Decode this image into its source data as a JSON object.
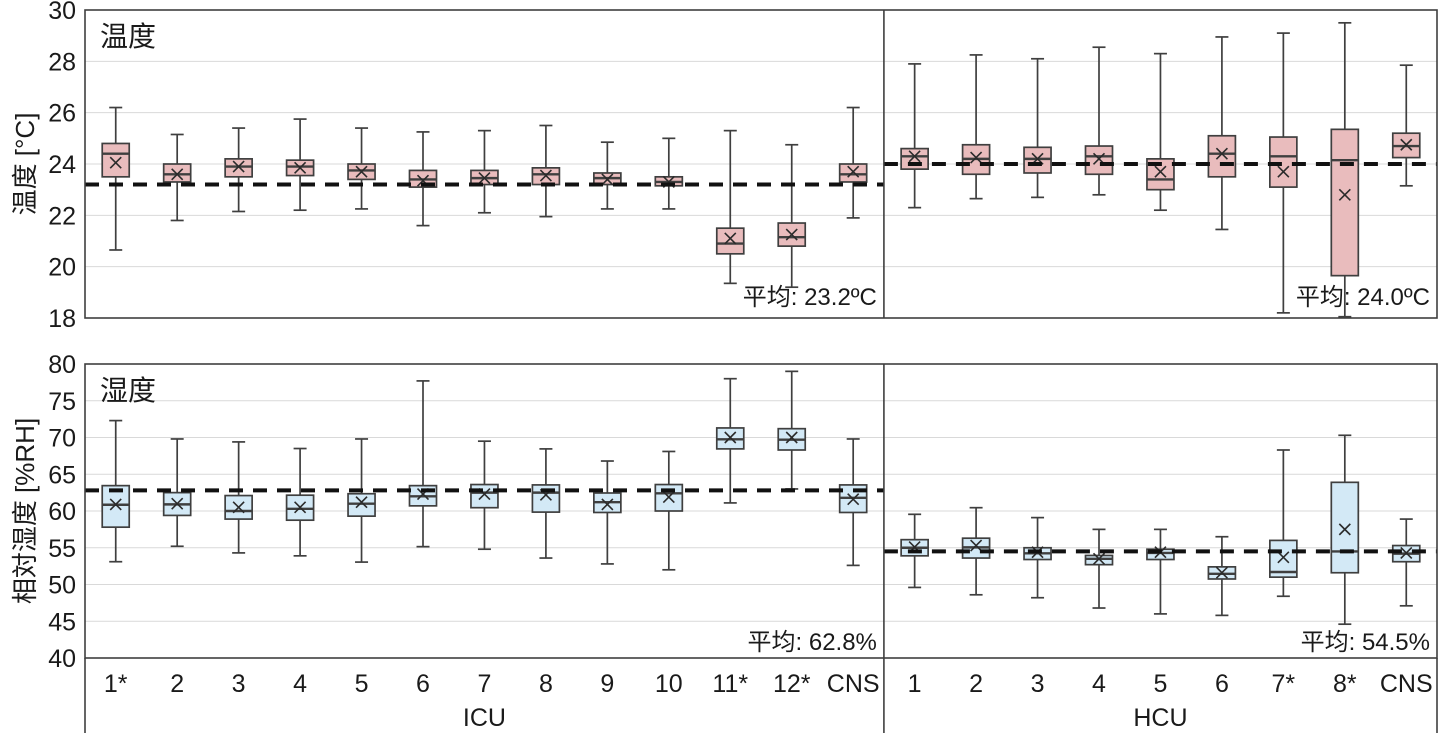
{
  "figure": {
    "background": "#ffffff",
    "grid_color": "#d9d9d9",
    "border_color": "#3f3f3f",
    "dashed_line_color": "#111111",
    "text_color": "#1a1a1a"
  },
  "chart_data": [
    {
      "type": "boxplot",
      "title": "温度",
      "ylabel": "温度 [°C]",
      "ylim": [
        18,
        30
      ],
      "ytick_step": 2,
      "yticks": [
        30,
        28,
        26,
        24,
        22,
        20,
        18
      ],
      "grid": true,
      "show_xlabels": false,
      "box_fill": "#e9bcbd",
      "box_stroke": "#3f3f3f",
      "groups": [
        {
          "name": "ICU",
          "mean_value": 23.2,
          "mean_label": "平均: 23.2ºC",
          "boxes": [
            {
              "label": "1*",
              "low": 20.65,
              "q1": 23.5,
              "med": 24.4,
              "q3": 24.8,
              "high": 26.2,
              "mean": 24.05
            },
            {
              "label": "2",
              "low": 21.8,
              "q1": 23.3,
              "med": 23.6,
              "q3": 24.0,
              "high": 25.15,
              "mean": 23.6
            },
            {
              "label": "3",
              "low": 22.15,
              "q1": 23.5,
              "med": 23.9,
              "q3": 24.2,
              "high": 25.4,
              "mean": 23.9
            },
            {
              "label": "4",
              "low": 22.2,
              "q1": 23.55,
              "med": 23.9,
              "q3": 24.15,
              "high": 25.75,
              "mean": 23.85
            },
            {
              "label": "5",
              "low": 22.25,
              "q1": 23.4,
              "med": 23.75,
              "q3": 24.0,
              "high": 25.4,
              "mean": 23.7
            },
            {
              "label": "6",
              "low": 21.6,
              "q1": 23.1,
              "med": 23.4,
              "q3": 23.75,
              "high": 25.25,
              "mean": 23.35
            },
            {
              "label": "7",
              "low": 22.1,
              "q1": 23.2,
              "med": 23.45,
              "q3": 23.75,
              "high": 25.3,
              "mean": 23.45
            },
            {
              "label": "8",
              "low": 21.95,
              "q1": 23.2,
              "med": 23.6,
              "q3": 23.85,
              "high": 25.5,
              "mean": 23.55
            },
            {
              "label": "9",
              "low": 22.25,
              "q1": 23.2,
              "med": 23.45,
              "q3": 23.65,
              "high": 24.85,
              "mean": 23.4
            },
            {
              "label": "10",
              "low": 22.25,
              "q1": 23.15,
              "med": 23.3,
              "q3": 23.5,
              "high": 25.0,
              "mean": 23.3
            },
            {
              "label": "11*",
              "low": 19.35,
              "q1": 20.5,
              "med": 20.9,
              "q3": 21.5,
              "high": 25.3,
              "mean": 21.1
            },
            {
              "label": "12*",
              "low": 19.2,
              "q1": 20.8,
              "med": 21.15,
              "q3": 21.7,
              "high": 24.75,
              "mean": 21.25
            },
            {
              "label": "CNS",
              "low": 21.9,
              "q1": 23.3,
              "med": 23.6,
              "q3": 24.0,
              "high": 26.2,
              "mean": 23.7
            }
          ]
        },
        {
          "name": "HCU",
          "mean_value": 24.0,
          "mean_label": "平均: 24.0ºC",
          "boxes": [
            {
              "label": "1",
              "low": 22.3,
              "q1": 23.8,
              "med": 24.3,
              "q3": 24.6,
              "high": 27.9,
              "mean": 24.3
            },
            {
              "label": "2",
              "low": 22.65,
              "q1": 23.6,
              "med": 24.2,
              "q3": 24.75,
              "high": 28.25,
              "mean": 24.25
            },
            {
              "label": "3",
              "low": 22.7,
              "q1": 23.65,
              "med": 24.2,
              "q3": 24.65,
              "high": 28.1,
              "mean": 24.2
            },
            {
              "label": "4",
              "low": 22.8,
              "q1": 23.6,
              "med": 24.3,
              "q3": 24.7,
              "high": 28.55,
              "mean": 24.2
            },
            {
              "label": "5",
              "low": 22.2,
              "q1": 23.0,
              "med": 23.4,
              "q3": 24.2,
              "high": 28.3,
              "mean": 23.7
            },
            {
              "label": "6",
              "low": 21.45,
              "q1": 23.5,
              "med": 24.4,
              "q3": 25.1,
              "high": 28.95,
              "mean": 24.4
            },
            {
              "label": "7*",
              "low": 18.2,
              "q1": 23.1,
              "med": 24.3,
              "q3": 25.05,
              "high": 29.1,
              "mean": 23.7
            },
            {
              "label": "8*",
              "low": 18.05,
              "q1": 19.65,
              "med": 24.15,
              "q3": 25.35,
              "high": 29.5,
              "mean": 22.8
            },
            {
              "label": "CNS",
              "low": 23.15,
              "q1": 24.25,
              "med": 24.7,
              "q3": 25.2,
              "high": 27.85,
              "mean": 24.75
            }
          ]
        }
      ]
    },
    {
      "type": "boxplot",
      "title": "湿度",
      "ylabel": "相対湿度 [%RH]",
      "ylim": [
        40,
        80
      ],
      "ytick_step": 5,
      "yticks": [
        80,
        75,
        70,
        65,
        60,
        55,
        50,
        45,
        40
      ],
      "grid": true,
      "show_xlabels": true,
      "box_fill": "#d3e9f6",
      "box_stroke": "#3f3f3f",
      "groups": [
        {
          "name": "ICU",
          "mean_value": 62.8,
          "mean_label": "平均: 62.8%",
          "boxes": [
            {
              "label": "1*",
              "low": 53.1,
              "q1": 57.8,
              "med": 60.85,
              "q3": 63.45,
              "high": 72.3,
              "mean": 60.9
            },
            {
              "label": "2",
              "low": 55.2,
              "q1": 59.4,
              "med": 60.9,
              "q3": 62.5,
              "high": 69.8,
              "mean": 61.0
            },
            {
              "label": "3",
              "low": 54.3,
              "q1": 58.9,
              "med": 60.0,
              "q3": 62.1,
              "high": 69.4,
              "mean": 60.5
            },
            {
              "label": "4",
              "low": 53.9,
              "q1": 58.75,
              "med": 60.3,
              "q3": 62.15,
              "high": 68.5,
              "mean": 60.5
            },
            {
              "label": "5",
              "low": 53.05,
              "q1": 59.3,
              "med": 61.0,
              "q3": 62.35,
              "high": 69.8,
              "mean": 61.2
            },
            {
              "label": "6",
              "low": 55.15,
              "q1": 60.7,
              "med": 62.0,
              "q3": 63.45,
              "high": 77.7,
              "mean": 62.3
            },
            {
              "label": "7",
              "low": 54.8,
              "q1": 60.45,
              "med": 62.5,
              "q3": 63.6,
              "high": 69.5,
              "mean": 62.3
            },
            {
              "label": "8",
              "low": 53.6,
              "q1": 59.85,
              "med": 62.5,
              "q3": 63.55,
              "high": 68.45,
              "mean": 62.2
            },
            {
              "label": "9",
              "low": 52.8,
              "q1": 59.8,
              "med": 61.2,
              "q3": 62.45,
              "high": 66.8,
              "mean": 60.9
            },
            {
              "label": "10",
              "low": 52.0,
              "q1": 60.0,
              "med": 62.4,
              "q3": 63.6,
              "high": 68.1,
              "mean": 61.9
            },
            {
              "label": "11*",
              "low": 61.1,
              "q1": 68.45,
              "med": 69.75,
              "q3": 71.3,
              "high": 78.0,
              "mean": 70.0
            },
            {
              "label": "12*",
              "low": 63.0,
              "q1": 68.3,
              "med": 69.7,
              "q3": 71.2,
              "high": 79.0,
              "mean": 70.0
            },
            {
              "label": "CNS",
              "low": 52.6,
              "q1": 59.8,
              "med": 61.8,
              "q3": 63.55,
              "high": 69.8,
              "mean": 61.6
            }
          ]
        },
        {
          "name": "HCU",
          "mean_value": 54.5,
          "mean_label": "平均: 54.5%",
          "boxes": [
            {
              "label": "1",
              "low": 49.6,
              "q1": 53.9,
              "med": 55.0,
              "q3": 56.1,
              "high": 59.55,
              "mean": 55.1
            },
            {
              "label": "2",
              "low": 48.6,
              "q1": 53.6,
              "med": 55.05,
              "q3": 56.3,
              "high": 60.45,
              "mean": 55.3
            },
            {
              "label": "3",
              "low": 48.2,
              "q1": 53.4,
              "med": 54.25,
              "q3": 55.0,
              "high": 59.1,
              "mean": 54.4
            },
            {
              "label": "4",
              "low": 46.8,
              "q1": 52.7,
              "med": 53.5,
              "q3": 53.95,
              "high": 57.5,
              "mean": 53.5
            },
            {
              "label": "5",
              "low": 46.0,
              "q1": 53.4,
              "med": 54.3,
              "q3": 54.8,
              "high": 57.5,
              "mean": 54.4
            },
            {
              "label": "6",
              "low": 45.8,
              "q1": 50.75,
              "med": 51.45,
              "q3": 52.4,
              "high": 56.5,
              "mean": 51.6
            },
            {
              "label": "7*",
              "low": 48.4,
              "q1": 51.0,
              "med": 51.7,
              "q3": 56.0,
              "high": 68.3,
              "mean": 53.7
            },
            {
              "label": "8*",
              "low": 44.6,
              "q1": 51.6,
              "med": 54.5,
              "q3": 63.9,
              "high": 70.3,
              "mean": 57.5
            },
            {
              "label": "CNS",
              "low": 47.1,
              "q1": 53.1,
              "med": 54.2,
              "q3": 55.3,
              "high": 58.9,
              "mean": 54.3
            }
          ]
        }
      ]
    }
  ]
}
